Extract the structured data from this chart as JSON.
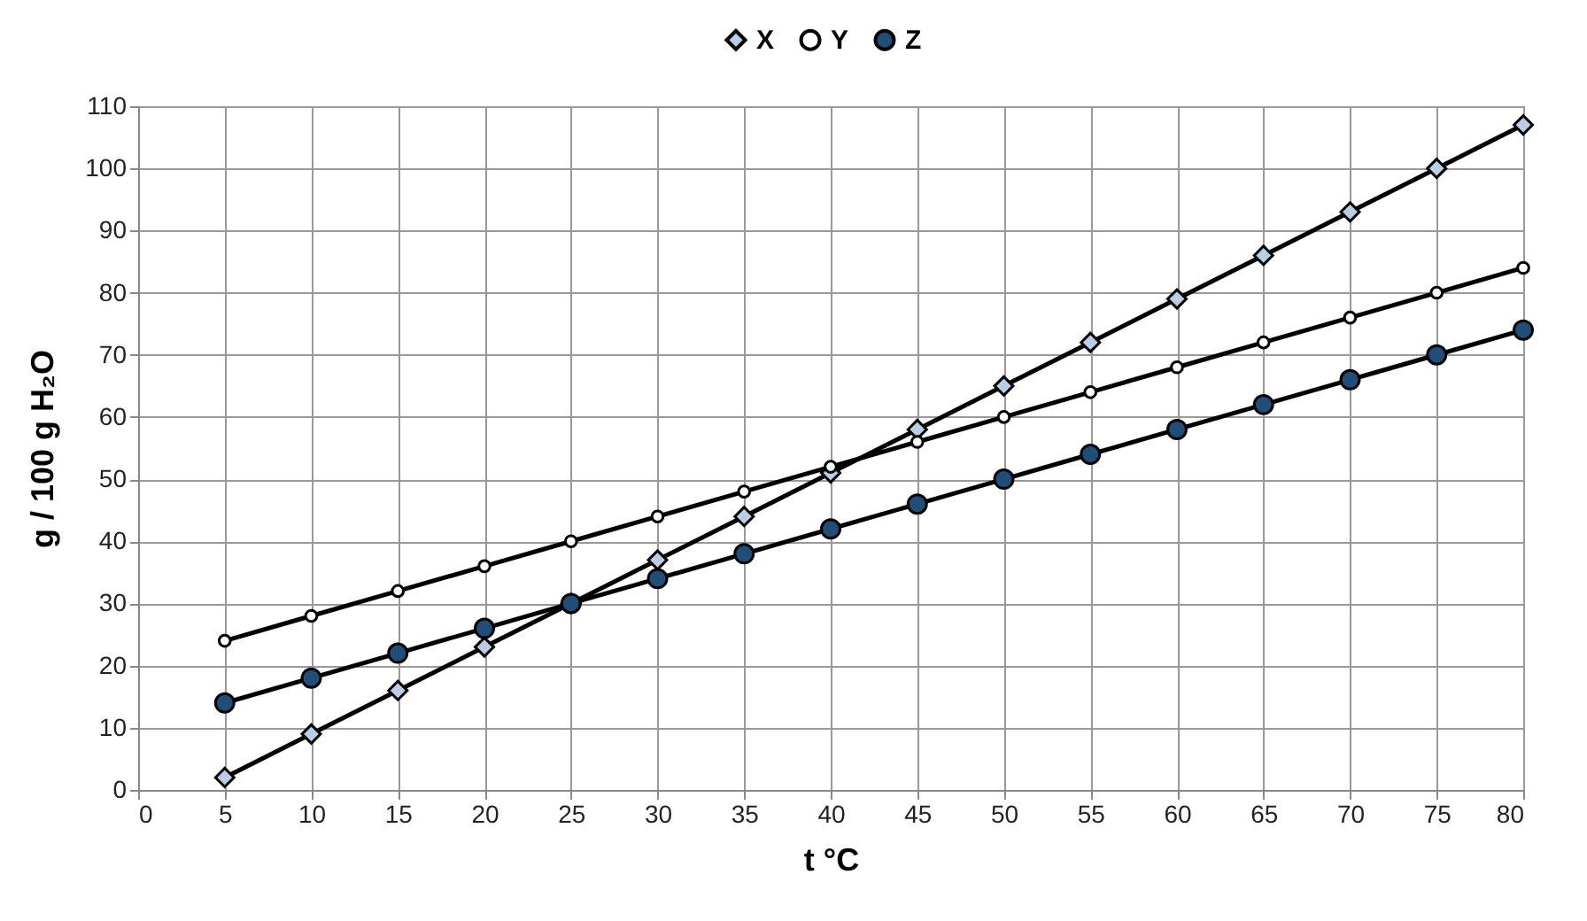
{
  "chart_data": {
    "type": "line",
    "xlabel": "t °C",
    "ylabel": "g / 100 g H₂O",
    "x": [
      5,
      10,
      15,
      20,
      25,
      30,
      35,
      40,
      45,
      50,
      55,
      60,
      65,
      70,
      75,
      80
    ],
    "series": [
      {
        "name": "X",
        "color": "#b9cde5",
        "marker": "diamond",
        "values": [
          2,
          9,
          16,
          23,
          30,
          37,
          44,
          51,
          58,
          65,
          72,
          79,
          86,
          93,
          100,
          107
        ]
      },
      {
        "name": "Y",
        "color": "#ffffff",
        "marker": "circle",
        "values": [
          24,
          28,
          32,
          36,
          40,
          44,
          48,
          52,
          56,
          60,
          64,
          68,
          72,
          76,
          80,
          84
        ]
      },
      {
        "name": "Z",
        "color": "#1f4e79",
        "marker": "circle",
        "values": [
          14,
          18,
          22,
          26,
          30,
          34,
          38,
          42,
          46,
          50,
          54,
          58,
          62,
          66,
          70,
          74
        ]
      }
    ],
    "xlim": [
      0,
      80
    ],
    "xticks": [
      0,
      5,
      10,
      15,
      20,
      25,
      30,
      35,
      40,
      45,
      50,
      55,
      60,
      65,
      70,
      75,
      80
    ],
    "ylim": [
      0,
      110
    ],
    "yticks": [
      0,
      10,
      20,
      30,
      40,
      50,
      60,
      70,
      80,
      90,
      100,
      110
    ],
    "grid": true,
    "legend": "top",
    "line_style": "solid"
  }
}
